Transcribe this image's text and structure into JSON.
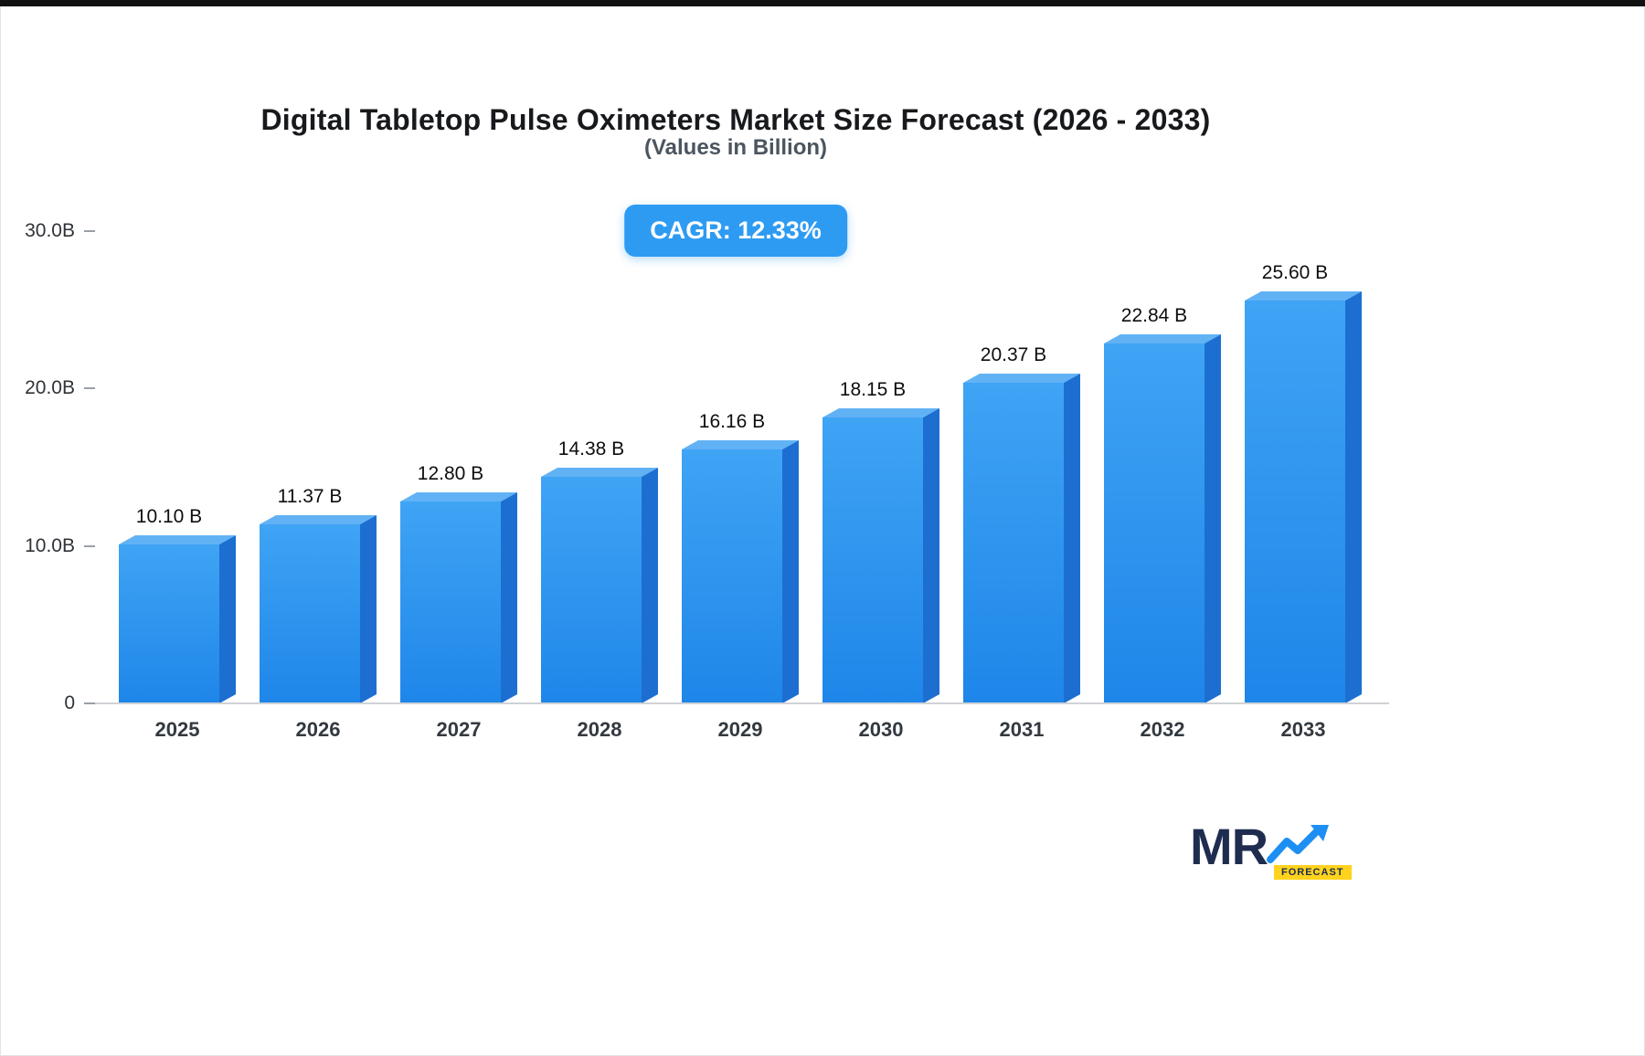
{
  "chart_data": {
    "type": "bar",
    "title": "Digital Tabletop Pulse Oximeters Market Size Forecast (2026 - 2033)",
    "subtitle": "(Values in Billion)",
    "cagr_label": "CAGR: 12.33%",
    "categories": [
      "2025",
      "2026",
      "2027",
      "2028",
      "2029",
      "2030",
      "2031",
      "2032",
      "2033"
    ],
    "values": [
      10.1,
      11.37,
      12.8,
      14.38,
      16.16,
      18.15,
      20.37,
      22.84,
      25.6
    ],
    "value_labels": [
      "10.10 B",
      "11.37 B",
      "12.80 B",
      "14.38 B",
      "16.16 B",
      "18.15 B",
      "20.37 B",
      "22.84 B",
      "25.60 B"
    ],
    "xlabel": "",
    "ylabel": "",
    "ylim": [
      0,
      30
    ],
    "ytick_labels": [
      "30.0B",
      "20.0B",
      "10.0B",
      "0"
    ],
    "grid": false,
    "legend": false
  },
  "colors": {
    "accent": "#2e9bf3",
    "bar_front_top": "#3fa4f4",
    "bar_front_bottom": "#1e86e9",
    "bar_side": "#1c6fd1",
    "bar_top": "#61b2f5",
    "logo_navy": "#1e2d4f",
    "logo_yellow": "#ffd21e"
  },
  "logo": {
    "brand": "MR",
    "tagline": "FORECAST"
  }
}
